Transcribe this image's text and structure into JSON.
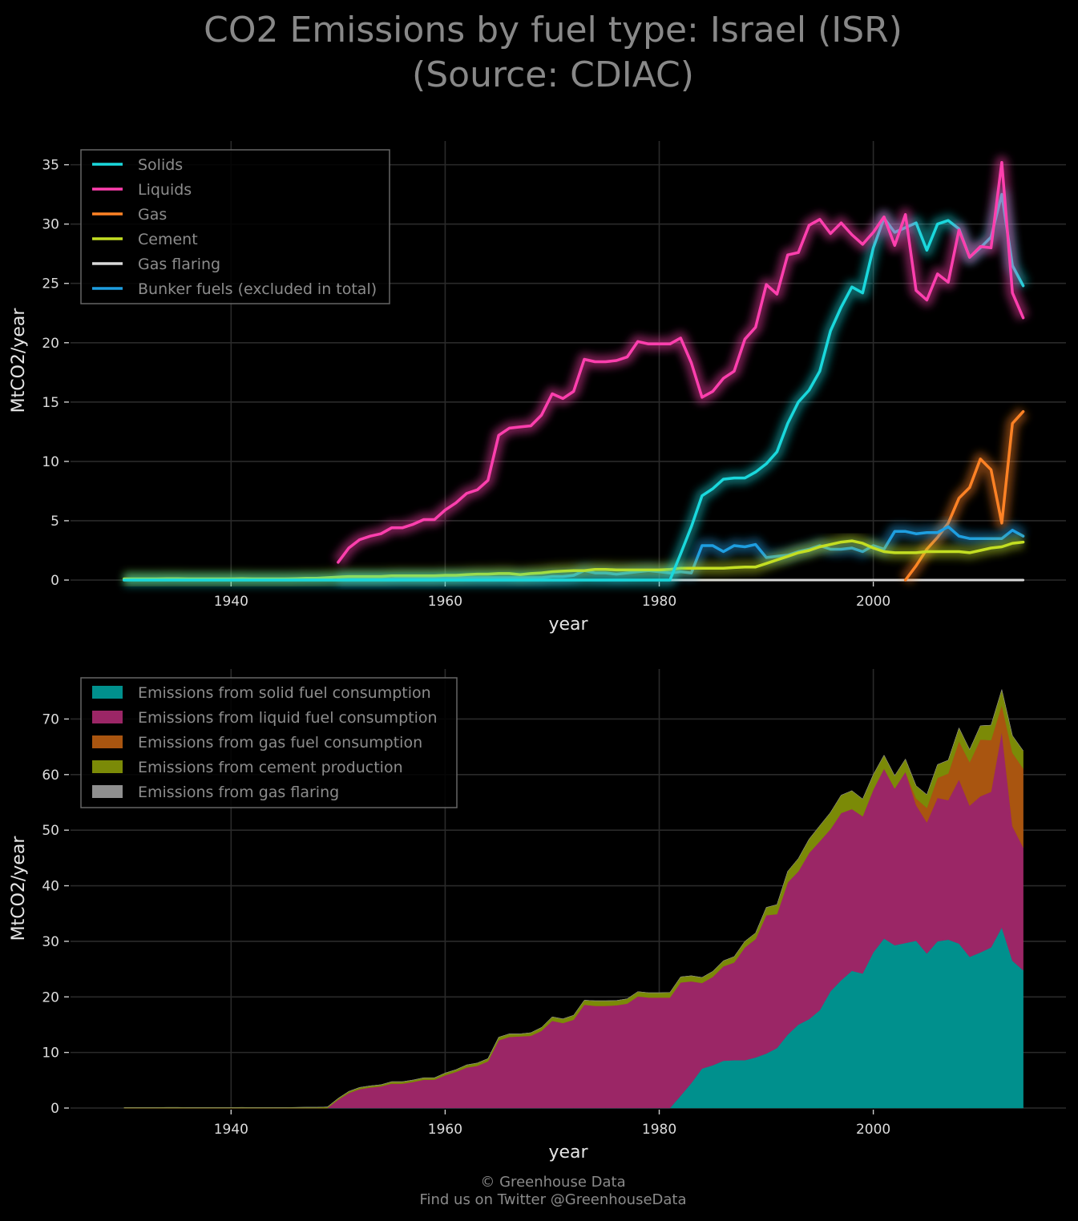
{
  "title_line1": "CO2 Emissions by fuel type: Israel (ISR)",
  "title_line2": "(Source: CDIAC)",
  "footer_line1": "© Greenhouse Data",
  "footer_line2": "Find us on Twitter @GreenhouseData",
  "chart_data": [
    {
      "type": "line",
      "xlabel": "year",
      "ylabel": "MtCO2/year",
      "xlim": [
        1925,
        2018
      ],
      "ylim": [
        0,
        37
      ],
      "xticks": [
        1940,
        1960,
        1980,
        2000
      ],
      "yticks": [
        0,
        5,
        10,
        15,
        20,
        25,
        30,
        35
      ],
      "grid": true,
      "legend_position": "top-left",
      "x": [
        1930,
        1931,
        1932,
        1933,
        1934,
        1935,
        1936,
        1937,
        1938,
        1939,
        1940,
        1941,
        1942,
        1943,
        1944,
        1945,
        1946,
        1947,
        1948,
        1949,
        1950,
        1951,
        1952,
        1953,
        1954,
        1955,
        1956,
        1957,
        1958,
        1959,
        1960,
        1961,
        1962,
        1963,
        1964,
        1965,
        1966,
        1967,
        1968,
        1969,
        1970,
        1971,
        1972,
        1973,
        1974,
        1975,
        1976,
        1977,
        1978,
        1979,
        1980,
        1981,
        1982,
        1983,
        1984,
        1985,
        1986,
        1987,
        1988,
        1989,
        1990,
        1991,
        1992,
        1993,
        1994,
        1995,
        1996,
        1997,
        1998,
        1999,
        2000,
        2001,
        2002,
        2003,
        2004,
        2005,
        2006,
        2007,
        2008,
        2009,
        2010,
        2011,
        2012,
        2013,
        2014
      ],
      "series": [
        {
          "name": "Solids",
          "color": "#1ad8dc",
          "values": [
            0,
            0,
            0,
            0,
            0,
            0,
            0,
            0,
            0,
            0,
            0,
            0,
            0,
            0,
            0,
            0,
            0,
            0,
            0,
            0,
            0,
            0,
            0,
            0,
            0,
            0,
            0,
            0,
            0,
            0,
            0,
            0,
            0,
            0,
            0,
            0,
            0,
            0,
            0,
            0,
            0,
            0,
            0,
            0,
            0,
            0,
            0,
            0,
            0,
            0,
            0,
            0,
            2.2,
            4.5,
            7.1,
            7.7,
            8.5,
            8.6,
            8.6,
            9.1,
            9.8,
            10.8,
            13.2,
            15.0,
            16.0,
            17.6,
            21.0,
            23.0,
            24.7,
            24.2,
            28.0,
            30.5,
            29.3,
            29.7,
            30.1,
            27.8,
            30.0,
            30.3,
            29.6,
            27.2,
            28.0,
            28.9,
            32.5,
            26.5,
            24.8
          ]
        },
        {
          "name": "Liquids",
          "color": "#ff3fae",
          "values": [
            null,
            null,
            null,
            null,
            null,
            null,
            null,
            null,
            null,
            null,
            null,
            null,
            null,
            null,
            null,
            null,
            null,
            null,
            null,
            null,
            1.5,
            2.7,
            3.4,
            3.7,
            3.9,
            4.4,
            4.4,
            4.7,
            5.1,
            5.1,
            5.9,
            6.5,
            7.3,
            7.6,
            8.4,
            12.2,
            12.8,
            12.9,
            13.0,
            13.9,
            15.7,
            15.3,
            15.9,
            18.6,
            18.4,
            18.4,
            18.5,
            18.8,
            20.1,
            19.9,
            19.9,
            19.9,
            20.4,
            18.3,
            15.4,
            15.9,
            17.0,
            17.6,
            20.3,
            21.3,
            24.9,
            24.1,
            27.4,
            27.6,
            29.9,
            30.4,
            29.2,
            30.1,
            29.1,
            28.3,
            29.3,
            30.6,
            28.2,
            30.8,
            24.4,
            23.6,
            25.8,
            25.1,
            29.5,
            27.2,
            28.1,
            28.0,
            35.2,
            24.2,
            22.1
          ]
        },
        {
          "name": "Gas",
          "color": "#ff8225",
          "values": [
            null,
            null,
            null,
            null,
            null,
            null,
            null,
            null,
            null,
            null,
            null,
            null,
            null,
            null,
            null,
            null,
            null,
            null,
            null,
            null,
            null,
            null,
            null,
            null,
            null,
            null,
            null,
            null,
            null,
            null,
            null,
            null,
            null,
            null,
            null,
            null,
            null,
            null,
            null,
            null,
            null,
            null,
            null,
            null,
            null,
            null,
            null,
            null,
            null,
            null,
            null,
            null,
            null,
            null,
            null,
            null,
            null,
            null,
            null,
            null,
            null,
            null,
            null,
            null,
            null,
            null,
            null,
            null,
            null,
            null,
            null,
            null,
            null,
            0.0,
            1.2,
            2.6,
            3.6,
            4.8,
            6.9,
            7.8,
            10.2,
            9.3,
            4.8,
            13.2,
            14.2
          ]
        },
        {
          "name": "Cement",
          "color": "#c3de22",
          "values": [
            0.1,
            0.1,
            0.1,
            0.1,
            0.12,
            0.12,
            0.1,
            0.1,
            0.1,
            0.1,
            0.1,
            0.12,
            0.1,
            0.1,
            0.1,
            0.1,
            0.12,
            0.15,
            0.15,
            0.2,
            0.25,
            0.3,
            0.3,
            0.3,
            0.3,
            0.35,
            0.35,
            0.35,
            0.35,
            0.35,
            0.4,
            0.4,
            0.45,
            0.5,
            0.5,
            0.55,
            0.55,
            0.45,
            0.55,
            0.6,
            0.7,
            0.75,
            0.8,
            0.8,
            0.9,
            0.9,
            0.85,
            0.85,
            0.85,
            0.85,
            0.85,
            0.9,
            1.0,
            1.0,
            1.0,
            1.0,
            1.0,
            1.05,
            1.1,
            1.1,
            1.4,
            1.7,
            2.0,
            2.3,
            2.5,
            2.8,
            3.0,
            3.2,
            3.3,
            3.1,
            2.7,
            2.4,
            2.3,
            2.3,
            2.3,
            2.4,
            2.4,
            2.4,
            2.4,
            2.3,
            2.5,
            2.7,
            2.8,
            3.1,
            3.2
          ]
        },
        {
          "name": "Gas flaring",
          "color": "#d9d9d9",
          "values": [
            0,
            0,
            0,
            0,
            0,
            0,
            0,
            0,
            0,
            0,
            0,
            0,
            0,
            0,
            0,
            0,
            0,
            0,
            0,
            0,
            0,
            0,
            0,
            0,
            0,
            0,
            0,
            0,
            0,
            0,
            0,
            0,
            0,
            0,
            0,
            0,
            0,
            0,
            0,
            0,
            0,
            0,
            0,
            0,
            0,
            0,
            0,
            0,
            0,
            0,
            0,
            0,
            0,
            0,
            0,
            0,
            0,
            0,
            0,
            0,
            0,
            0,
            0,
            0,
            0,
            0,
            0,
            0,
            0,
            0,
            0,
            0,
            0,
            0,
            0,
            0,
            0,
            0,
            0,
            0,
            0,
            0,
            0,
            0,
            0
          ]
        },
        {
          "name": "Bunker fuels (excluded in total)",
          "color": "#1e9ee0",
          "values": [
            null,
            null,
            null,
            null,
            null,
            null,
            null,
            null,
            null,
            null,
            null,
            null,
            null,
            null,
            null,
            null,
            null,
            null,
            null,
            null,
            0.1,
            0.1,
            0.1,
            0.1,
            0.1,
            0.1,
            0.15,
            0.15,
            0.15,
            0.15,
            0.2,
            0.2,
            0.2,
            0.2,
            0.2,
            0.2,
            0.2,
            0.2,
            0.2,
            0.2,
            0.3,
            0.3,
            0.4,
            0.8,
            0.6,
            0.6,
            0.5,
            0.6,
            0.7,
            0.8,
            0.7,
            0.6,
            0.7,
            0.6,
            2.9,
            2.9,
            2.4,
            2.9,
            2.8,
            3.0,
            1.9,
            2.0,
            2.1,
            2.4,
            2.6,
            2.9,
            2.6,
            2.6,
            2.7,
            2.4,
            2.9,
            2.6,
            4.1,
            4.1,
            3.9,
            4.0,
            4.0,
            4.5,
            3.7,
            3.5,
            3.5,
            3.5,
            3.5,
            4.2,
            3.7
          ]
        }
      ]
    },
    {
      "type": "area",
      "stacked": true,
      "xlabel": "year",
      "ylabel": "MtCO2/year",
      "xlim": [
        1925,
        2018
      ],
      "ylim": [
        0,
        79
      ],
      "xticks": [
        1940,
        1960,
        1980,
        2000
      ],
      "yticks": [
        0,
        10,
        20,
        30,
        40,
        50,
        60,
        70
      ],
      "grid": true,
      "legend_position": "top-left",
      "series_refs": [
        "Solids",
        "Liquids",
        "Gas",
        "Cement",
        "Gas flaring"
      ],
      "series": [
        {
          "name": "Emissions from solid fuel consumption",
          "color": "#00908d"
        },
        {
          "name": "Emissions from liquid fuel consumption",
          "color": "#9b2666"
        },
        {
          "name": "Emissions from gas fuel consumption",
          "color": "#a95510"
        },
        {
          "name": "Emissions from cement production",
          "color": "#7b8a07"
        },
        {
          "name": "Emissions from gas flaring",
          "color": "#8f8f8f"
        }
      ]
    }
  ]
}
